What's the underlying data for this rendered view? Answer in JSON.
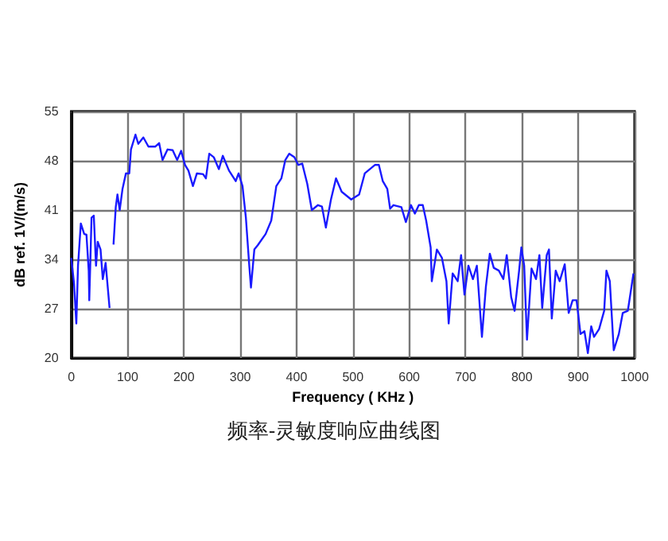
{
  "chart_data": {
    "type": "line",
    "title": "频率-灵敏度响应曲线图",
    "xlabel": "Frequency ( KHz )",
    "ylabel": "dB ref. 1V/(m/s)",
    "xlim": [
      0,
      1000
    ],
    "xticks": [
      0,
      100,
      200,
      300,
      400,
      500,
      600,
      700,
      800,
      900,
      1000
    ],
    "ylim": [
      20,
      55
    ],
    "yticks": [
      20,
      27,
      34,
      41,
      48,
      55
    ],
    "grid": true,
    "marker": "none",
    "line_style": "solid",
    "series": [
      {
        "color": "#1a1aff",
        "x": [
          0,
          5,
          9,
          12,
          17,
          23,
          27,
          31,
          32,
          36,
          40,
          44,
          47,
          52,
          56,
          61,
          68,
          71,
          75,
          79,
          82,
          86,
          91,
          97,
          103,
          106,
          114,
          119,
          128,
          137,
          149,
          156,
          162,
          171,
          180,
          188,
          195,
          202,
          208,
          216,
          223,
          234,
          239,
          245,
          253,
          262,
          269,
          280,
          292,
          297,
          304,
          310,
          316,
          319,
          325,
          331,
          345,
          355,
          364,
          373,
          380,
          387,
          396,
          403,
          410,
          419,
          427,
          438,
          445,
          452,
          461,
          470,
          480,
          497,
          511,
          521,
          530,
          539,
          546,
          553,
          561,
          566,
          572,
          586,
          594,
          603,
          610,
          617,
          624,
          630,
          638,
          640,
          649,
          658,
          666,
          670,
          677,
          686,
          692,
          698,
          705,
          713,
          720,
          729,
          736,
          743,
          750,
          759,
          767,
          773,
          781,
          787,
          795,
          799,
          804,
          809,
          817,
          825,
          831,
          836,
          844,
          848,
          853,
          860,
          867,
          876,
          883,
          890,
          897,
          904,
          911,
          917,
          923,
          928,
          937,
          946,
          950,
          956,
          963,
          972,
          979,
          988,
          998
        ],
        "values": [
          34.2,
          30.5,
          24.9,
          33.1,
          39.1,
          37.6,
          37.5,
          32.4,
          28.2,
          39.9,
          40.2,
          33.1,
          36.5,
          35.4,
          31.2,
          33.5,
          27.1,
          null,
          36.1,
          41.4,
          43.2,
          41.0,
          44.0,
          46.2,
          46.2,
          49.6,
          51.7,
          50.4,
          51.3,
          50.0,
          50.0,
          50.5,
          48.1,
          49.6,
          49.5,
          48.1,
          49.4,
          47.4,
          46.6,
          44.4,
          46.2,
          46.1,
          45.5,
          49.0,
          48.5,
          46.8,
          48.7,
          46.6,
          45.1,
          46.2,
          44.4,
          39.9,
          33.1,
          30.0,
          35.4,
          36.0,
          37.6,
          39.5,
          44.4,
          45.5,
          48.1,
          49.0,
          48.5,
          47.4,
          47.6,
          44.7,
          41.0,
          41.7,
          41.5,
          38.5,
          42.5,
          45.5,
          43.6,
          42.5,
          43.2,
          46.2,
          46.8,
          47.4,
          47.4,
          45.1,
          44.0,
          41.2,
          41.7,
          41.4,
          39.3,
          41.7,
          40.5,
          41.7,
          41.7,
          39.5,
          35.7,
          30.9,
          35.4,
          34.2,
          30.9,
          24.9,
          32.0,
          30.9,
          34.6,
          29.0,
          33.1,
          31.2,
          33.1,
          23.0,
          30.1,
          34.8,
          32.8,
          32.4,
          31.2,
          34.6,
          28.6,
          26.7,
          32.4,
          35.7,
          33.1,
          22.6,
          32.7,
          31.2,
          34.6,
          27.1,
          34.6,
          35.4,
          25.6,
          32.4,
          30.9,
          33.3,
          26.4,
          28.2,
          28.2,
          23.4,
          23.8,
          20.7,
          24.5,
          23.0,
          24.1,
          26.7,
          32.4,
          30.9,
          21.1,
          23.4,
          26.4,
          26.7,
          32.0
        ]
      }
    ]
  }
}
